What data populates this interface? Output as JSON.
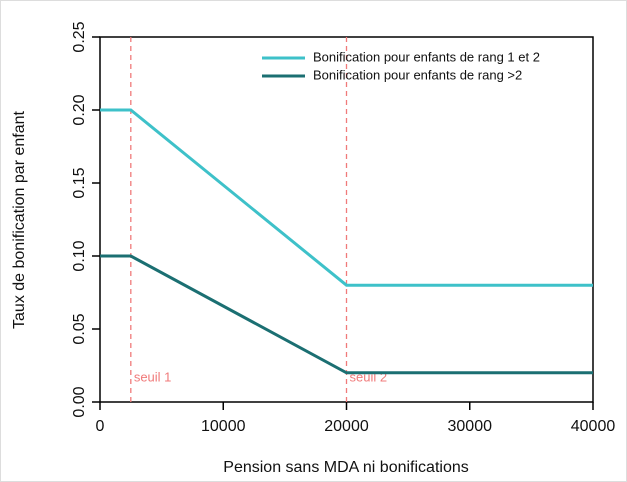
{
  "chart_data": {
    "type": "line",
    "x_label": "Pension sans MDA ni bonifications",
    "y_label": "Taux de bonification par enfant",
    "x": [
      0,
      2500,
      20000,
      40000
    ],
    "series": [
      {
        "name": "Bonification pour enfants de rang 1 et 2",
        "color": "#3ec1c9",
        "values": [
          0.2,
          0.2,
          0.08,
          0.08
        ]
      },
      {
        "name": "Bonification pour enfants de rang >2",
        "color": "#1b6f72",
        "values": [
          0.1,
          0.1,
          0.02,
          0.02
        ]
      }
    ],
    "vlines": [
      {
        "x": 2500,
        "label": "seuil 1",
        "color": "#f07a7a"
      },
      {
        "x": 20000,
        "label": "seuil 2",
        "color": "#f07a7a"
      }
    ],
    "xlim": [
      0,
      40000
    ],
    "xticks": [
      0,
      10000,
      20000,
      30000,
      40000
    ],
    "ylim": [
      0,
      0.25
    ],
    "yticks": [
      {
        "value": 0,
        "label": "0.00"
      },
      {
        "value": 0.05,
        "label": "0.05"
      },
      {
        "value": 0.1,
        "label": "0.10"
      },
      {
        "value": 0.15,
        "label": "0.15"
      },
      {
        "value": 0.2,
        "label": "0.20"
      },
      {
        "value": 0.25,
        "label": "0.25"
      }
    ],
    "legend": "top-right"
  }
}
